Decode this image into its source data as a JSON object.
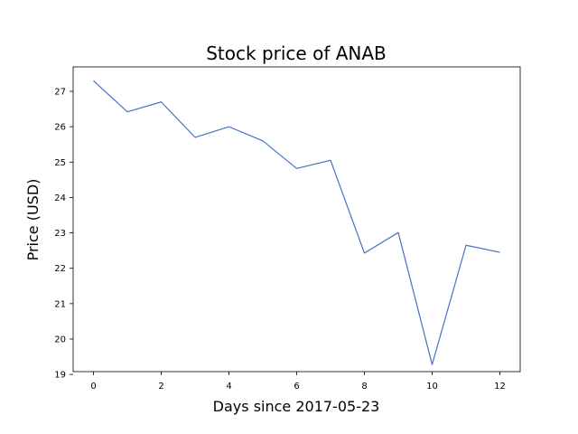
{
  "chart_data": {
    "type": "line",
    "title": "Stock price of ANAB",
    "xlabel": "Days since 2017-05-23",
    "ylabel": "Price (USD)",
    "x": [
      0,
      1,
      2,
      3,
      4,
      5,
      6,
      7,
      8,
      9,
      10,
      11,
      12
    ],
    "series": [
      {
        "values": [
          27.3,
          26.42,
          26.7,
          25.7,
          26.0,
          25.6,
          24.82,
          25.05,
          22.43,
          23.01,
          19.28,
          22.65,
          22.45
        ]
      }
    ],
    "xlim": [
      -0.6,
      12.6
    ],
    "ylim": [
      19.08,
      27.69
    ],
    "xticks": [
      0,
      2,
      4,
      6,
      8,
      10,
      12
    ],
    "yticks": [
      19,
      20,
      21,
      22,
      23,
      24,
      25,
      26,
      27
    ],
    "grid": false,
    "legend": "none",
    "colors": {
      "line": "#4472c4"
    }
  }
}
